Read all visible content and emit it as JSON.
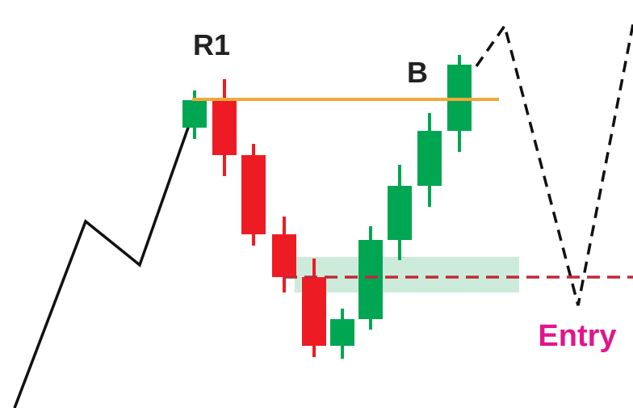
{
  "labels": {
    "resistance": "R1",
    "breakout": "B",
    "entry": "Entry"
  }
}
